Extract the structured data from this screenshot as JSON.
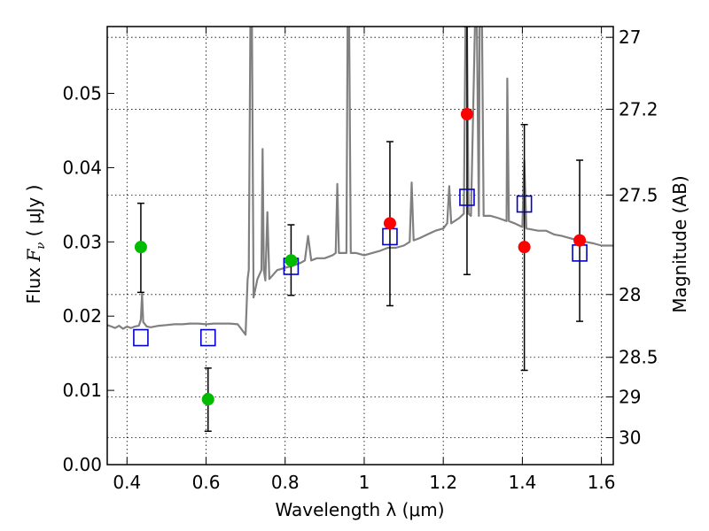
{
  "chart_data": {
    "type": "scatter",
    "xlabel": "Wavelength  λ (μm)",
    "ylabel_prefix": "Flux  ",
    "ylabel_var": "F",
    "ylabel_sub": "ν",
    "ylabel_suffix": "  ( μJy )",
    "y2label": "Magnitude (AB)",
    "xlim": [
      0.35,
      1.63
    ],
    "ylim": [
      0.0,
      0.059
    ],
    "grid": true,
    "x_ticks": [
      {
        "value": 0.4,
        "label": "0.4"
      },
      {
        "value": 0.6,
        "label": "0.6"
      },
      {
        "value": 0.8,
        "label": "0.8"
      },
      {
        "value": 1.0,
        "label": "1"
      },
      {
        "value": 1.2,
        "label": "1.2"
      },
      {
        "value": 1.4,
        "label": "1.4"
      },
      {
        "value": 1.6,
        "label": "1.6"
      }
    ],
    "y_ticks": [
      {
        "value": 0.0,
        "label": "0.00"
      },
      {
        "value": 0.01,
        "label": "0.01"
      },
      {
        "value": 0.02,
        "label": "0.02"
      },
      {
        "value": 0.03,
        "label": "0.03"
      },
      {
        "value": 0.04,
        "label": "0.04"
      },
      {
        "value": 0.05,
        "label": "0.05"
      }
    ],
    "y2_ticks": [
      {
        "value": 27.0,
        "label": "27"
      },
      {
        "value": 27.2,
        "label": "27.2"
      },
      {
        "value": 27.5,
        "label": "27.5"
      },
      {
        "value": 28.0,
        "label": "28"
      },
      {
        "value": 28.5,
        "label": "28.5"
      },
      {
        "value": 29.0,
        "label": "29"
      },
      {
        "value": 30.0,
        "label": "30"
      }
    ],
    "series": [
      {
        "kind": "line",
        "color": "#808080",
        "points": [
          [
            0.35,
            0.0188
          ],
          [
            0.36,
            0.0186
          ],
          [
            0.37,
            0.0184
          ],
          [
            0.38,
            0.0187
          ],
          [
            0.39,
            0.0183
          ],
          [
            0.4,
            0.0186
          ],
          [
            0.41,
            0.0184
          ],
          [
            0.42,
            0.0186
          ],
          [
            0.43,
            0.0187
          ],
          [
            0.435,
            0.0195
          ],
          [
            0.438,
            0.023
          ],
          [
            0.441,
            0.0192
          ],
          [
            0.45,
            0.0186
          ],
          [
            0.46,
            0.0185
          ],
          [
            0.48,
            0.0187
          ],
          [
            0.5,
            0.0188
          ],
          [
            0.52,
            0.0189
          ],
          [
            0.54,
            0.0189
          ],
          [
            0.56,
            0.019
          ],
          [
            0.58,
            0.019
          ],
          [
            0.6,
            0.0189
          ],
          [
            0.62,
            0.019
          ],
          [
            0.64,
            0.019
          ],
          [
            0.66,
            0.019
          ],
          [
            0.68,
            0.0189
          ],
          [
            0.7,
            0.0175
          ],
          [
            0.705,
            0.025
          ],
          [
            0.708,
            0.0262
          ],
          [
            0.712,
            0.059
          ],
          [
            0.716,
            0.059
          ],
          [
            0.72,
            0.0225
          ],
          [
            0.73,
            0.025
          ],
          [
            0.74,
            0.0262
          ],
          [
            0.743,
            0.0425
          ],
          [
            0.746,
            0.0262
          ],
          [
            0.75,
            0.0248
          ],
          [
            0.755,
            0.034
          ],
          [
            0.76,
            0.025
          ],
          [
            0.78,
            0.0262
          ],
          [
            0.8,
            0.0265
          ],
          [
            0.82,
            0.0268
          ],
          [
            0.84,
            0.0272
          ],
          [
            0.85,
            0.0275
          ],
          [
            0.858,
            0.0308
          ],
          [
            0.866,
            0.0275
          ],
          [
            0.88,
            0.0278
          ],
          [
            0.9,
            0.0278
          ],
          [
            0.92,
            0.0282
          ],
          [
            0.928,
            0.0285
          ],
          [
            0.932,
            0.0378
          ],
          [
            0.936,
            0.0285
          ],
          [
            0.95,
            0.0285
          ],
          [
            0.955,
            0.0285
          ],
          [
            0.958,
            0.059
          ],
          [
            0.962,
            0.059
          ],
          [
            0.966,
            0.0285
          ],
          [
            0.98,
            0.0285
          ],
          [
            1.0,
            0.0282
          ],
          [
            1.02,
            0.0285
          ],
          [
            1.04,
            0.0288
          ],
          [
            1.06,
            0.0292
          ],
          [
            1.08,
            0.0292
          ],
          [
            1.1,
            0.0295
          ],
          [
            1.115,
            0.03
          ],
          [
            1.12,
            0.038
          ],
          [
            1.125,
            0.0302
          ],
          [
            1.14,
            0.0305
          ],
          [
            1.16,
            0.031
          ],
          [
            1.18,
            0.0315
          ],
          [
            1.2,
            0.0318
          ],
          [
            1.21,
            0.0325
          ],
          [
            1.215,
            0.0375
          ],
          [
            1.22,
            0.0325
          ],
          [
            1.24,
            0.0332
          ],
          [
            1.252,
            0.0338
          ],
          [
            1.256,
            0.059
          ],
          [
            1.26,
            0.059
          ],
          [
            1.264,
            0.0338
          ],
          [
            1.27,
            0.0335
          ],
          [
            1.28,
            0.059
          ],
          [
            1.285,
            0.059
          ],
          [
            1.29,
            0.0335
          ],
          [
            1.292,
            0.059
          ],
          [
            1.298,
            0.059
          ],
          [
            1.302,
            0.0335
          ],
          [
            1.32,
            0.0335
          ],
          [
            1.34,
            0.0332
          ],
          [
            1.36,
            0.0328
          ],
          [
            1.362,
            0.052
          ],
          [
            1.366,
            0.0328
          ],
          [
            1.38,
            0.0325
          ],
          [
            1.4,
            0.032
          ],
          [
            1.405,
            0.041
          ],
          [
            1.41,
            0.0318
          ],
          [
            1.44,
            0.0315
          ],
          [
            1.46,
            0.0315
          ],
          [
            1.48,
            0.031
          ],
          [
            1.5,
            0.0308
          ],
          [
            1.52,
            0.0305
          ],
          [
            1.54,
            0.0302
          ],
          [
            1.56,
            0.03
          ],
          [
            1.58,
            0.0298
          ],
          [
            1.6,
            0.0295
          ],
          [
            1.63,
            0.0295
          ]
        ]
      },
      {
        "kind": "errorbar",
        "color": "#000000",
        "points": [
          {
            "x": 0.435,
            "y": 0.0293,
            "lo": 0.0232,
            "hi": 0.0352
          },
          {
            "x": 0.605,
            "y": 0.0088,
            "lo": 0.0045,
            "hi": 0.013
          },
          {
            "x": 0.815,
            "y": 0.0275,
            "lo": 0.0228,
            "hi": 0.0323
          },
          {
            "x": 1.065,
            "y": 0.0325,
            "lo": 0.0214,
            "hi": 0.0435
          },
          {
            "x": 1.26,
            "y": 0.0472,
            "lo": 0.0256,
            "hi": 0.059
          },
          {
            "x": 1.405,
            "y": 0.0293,
            "lo": 0.0127,
            "hi": 0.0458
          },
          {
            "x": 1.545,
            "y": 0.0302,
            "lo": 0.0193,
            "hi": 0.041
          }
        ]
      },
      {
        "kind": "marker-square-open",
        "color": "#0000cc",
        "points": [
          [
            0.435,
            0.0171
          ],
          [
            0.605,
            0.0171
          ],
          [
            0.815,
            0.0267
          ],
          [
            1.065,
            0.0307
          ],
          [
            1.26,
            0.036
          ],
          [
            1.405,
            0.0351
          ],
          [
            1.545,
            0.0285
          ]
        ]
      },
      {
        "kind": "marker-circle",
        "color": "#00bb00",
        "points": [
          [
            0.435,
            0.0293
          ],
          [
            0.605,
            0.0088
          ],
          [
            0.815,
            0.0275
          ]
        ]
      },
      {
        "kind": "marker-circle",
        "color": "#ff0000",
        "points": [
          [
            1.065,
            0.0325
          ],
          [
            1.26,
            0.0472
          ],
          [
            1.405,
            0.0293
          ],
          [
            1.545,
            0.0302
          ]
        ]
      }
    ]
  }
}
